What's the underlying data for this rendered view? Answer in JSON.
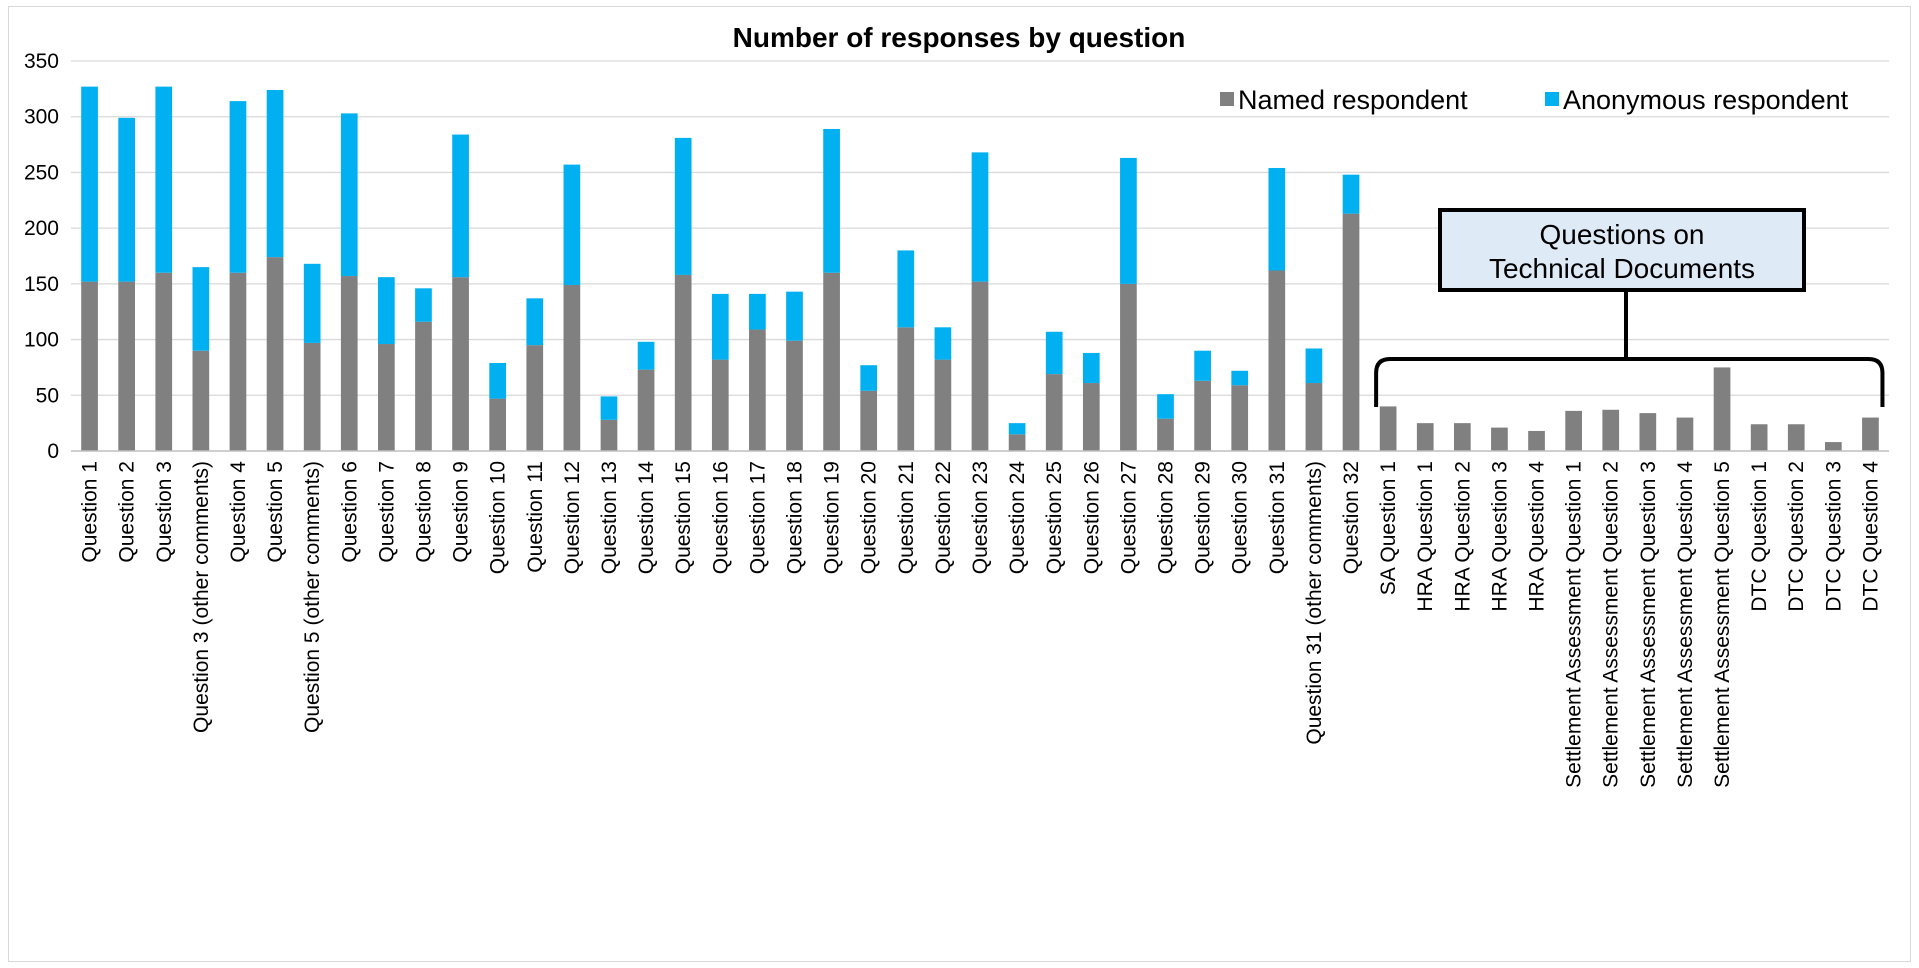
{
  "chart_data": {
    "type": "bar",
    "stacked": true,
    "title": "Number of responses by question",
    "xlabel": "",
    "ylabel": "",
    "ylim": [
      0,
      350
    ],
    "yticks": [
      0,
      50,
      100,
      150,
      200,
      250,
      300,
      350
    ],
    "grid": true,
    "legend_position": "top-right",
    "categories": [
      "Question 1",
      "Question 2",
      "Question 3",
      "Question 3 (other comments)",
      "Question 4",
      "Question 5",
      "Question 5 (other comments)",
      "Question 6",
      "Question 7",
      "Question 8",
      "Question 9",
      "Question 10",
      "Question 11",
      "Question 12",
      "Question 13",
      "Question 14",
      "Question 15",
      "Question 16",
      "Question 17",
      "Question 18",
      "Question 19",
      "Question 20",
      "Question 21",
      "Question 22",
      "Question 23",
      "Question 24",
      "Question 25",
      "Question 26",
      "Question 27",
      "Question 28",
      "Question 29",
      "Question 30",
      "Question 31",
      "Question 31 (other comments)",
      "Question 32",
      "SA Question 1",
      "HRA Question 1",
      "HRA Question 2",
      "HRA Question 3",
      "HRA Question 4",
      "Settlement Assessment Question 1",
      "Settlement Assessment Question 2",
      "Settlement Assessment Question 3",
      "Settlement Assessment Question 4",
      "Settlement Assessment Question 5",
      "DTC Question 1",
      "DTC Question 2",
      "DTC Question 3",
      "DTC Question 4"
    ],
    "series": [
      {
        "name": "Named respondent",
        "color": "#808080",
        "values": [
          152,
          152,
          160,
          90,
          160,
          174,
          97,
          157,
          96,
          116,
          156,
          47,
          95,
          149,
          28,
          73,
          158,
          82,
          109,
          99,
          160,
          54,
          111,
          82,
          152,
          15,
          69,
          61,
          150,
          29,
          63,
          59,
          162,
          61,
          213,
          40,
          25,
          25,
          21,
          18,
          36,
          37,
          34,
          30,
          75,
          24,
          24,
          8,
          30
        ]
      },
      {
        "name": "Anonymous respondent",
        "color": "#00b0f0",
        "values": [
          175,
          147,
          167,
          75,
          154,
          150,
          71,
          146,
          60,
          30,
          128,
          32,
          42,
          108,
          21,
          25,
          123,
          59,
          32,
          44,
          129,
          23,
          69,
          29,
          116,
          10,
          38,
          27,
          113,
          22,
          27,
          13,
          92,
          31,
          35,
          0,
          0,
          0,
          0,
          0,
          0,
          0,
          0,
          0,
          0,
          0,
          0,
          0,
          0
        ]
      }
    ],
    "annotation": {
      "text_lines": [
        "Questions on",
        "Technical Documents"
      ],
      "first_category": "SA Question 1",
      "last_category": "DTC Question 4"
    }
  }
}
